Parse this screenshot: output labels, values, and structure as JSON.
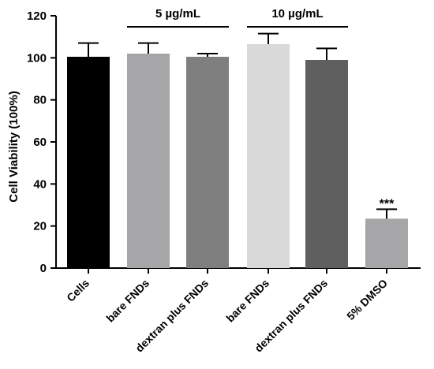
{
  "chart_data": {
    "type": "bar",
    "ylabel": "Cell Viability (100%)",
    "ylim": [
      0,
      120
    ],
    "yticks": [
      "0",
      "20",
      "40",
      "60",
      "80",
      "100",
      "120"
    ],
    "grid": false,
    "categories": [
      "Cells",
      "bare FNDs",
      "dextran plus FNDs",
      "bare FNDs",
      "dextran plus FNDs",
      "5% DMSO"
    ],
    "values": [
      100.5,
      102,
      100.5,
      106.5,
      99,
      23.5
    ],
    "errors": [
      6.5,
      5,
      1.5,
      5,
      5.5,
      4.5
    ],
    "colors": [
      "#000000",
      "#a6a6a8",
      "#7f7f7f",
      "#d9d9d9",
      "#5f5f5f",
      "#a6a6a8"
    ],
    "groups": [
      {
        "label": "5 µg/mL",
        "from": 1,
        "to": 2
      },
      {
        "label": "10 µg/mL",
        "from": 3,
        "to": 4
      }
    ],
    "annotations": [
      {
        "category_index": 5,
        "text": "***"
      }
    ]
  }
}
